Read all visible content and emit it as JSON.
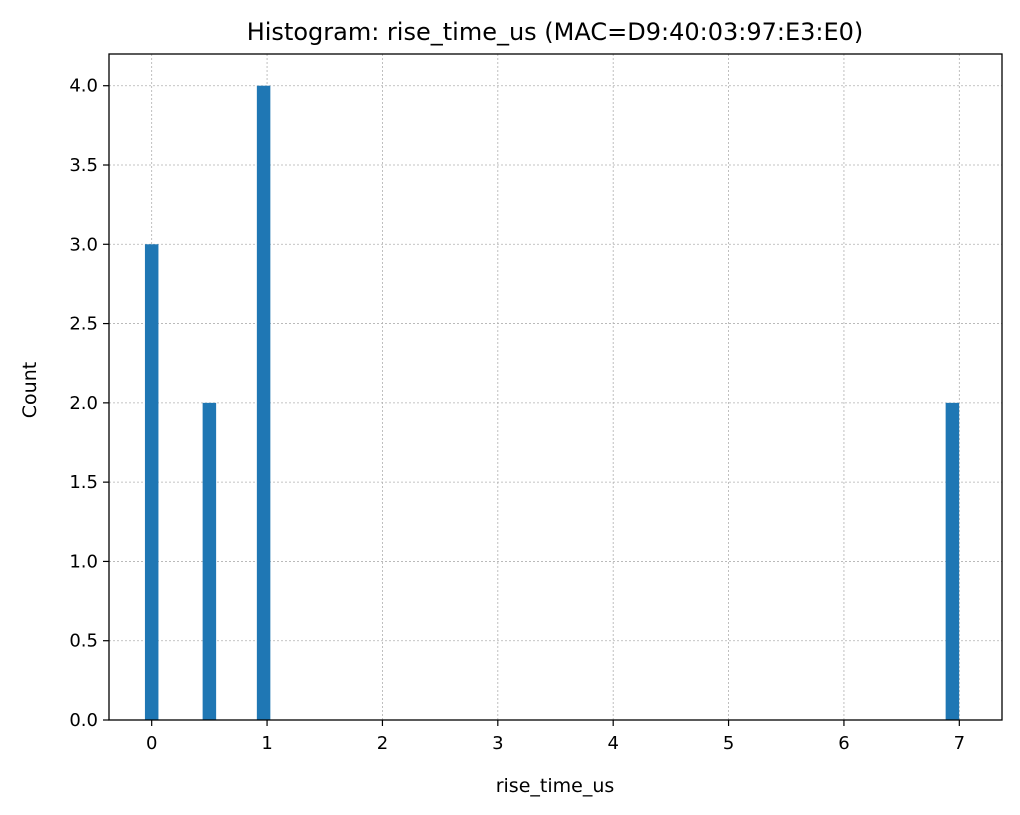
{
  "chart_data": {
    "type": "bar",
    "title": "Histogram: rise_time_us (MAC=D9:40:03:97:E3:E0)",
    "xlabel": "rise_time_us",
    "ylabel": "Count",
    "xlim": [
      -0.37,
      7.37
    ],
    "ylim": [
      0,
      4.2
    ],
    "bin_width": 0.117,
    "bins": [
      {
        "x": 0.0,
        "count": 3
      },
      {
        "x": 0.5,
        "count": 2
      },
      {
        "x": 0.97,
        "count": 4
      },
      {
        "x": 6.94,
        "count": 2
      }
    ],
    "x_ticks": [
      0,
      1,
      2,
      3,
      4,
      5,
      6,
      7
    ],
    "x_tick_labels": [
      "0",
      "1",
      "2",
      "3",
      "4",
      "5",
      "6",
      "7"
    ],
    "y_ticks": [
      0,
      0.5,
      1,
      1.5,
      2,
      2.5,
      3,
      3.5,
      4
    ],
    "y_tick_labels": [
      "0.0",
      "0.5",
      "1.0",
      "1.5",
      "2.0",
      "2.5",
      "3.0",
      "3.5",
      "4.0"
    ],
    "grid": true,
    "legend": "none",
    "colors": {
      "bar": "#1f77b4",
      "grid": "#b0b0b0"
    }
  }
}
